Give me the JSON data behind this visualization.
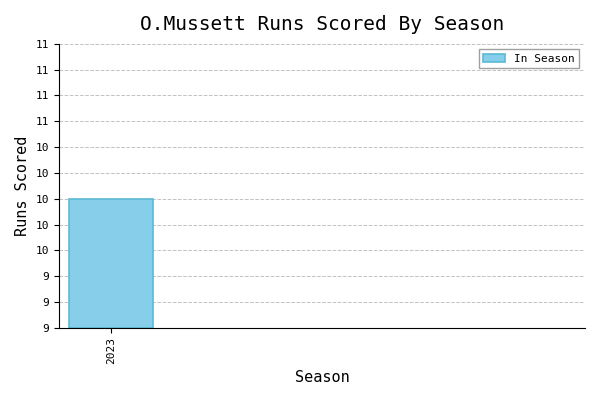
{
  "title": "O.Mussett Runs Scored By Season",
  "xlabel": "Season",
  "ylabel": "Runs Scored",
  "seasons": [
    2023
  ],
  "values": [
    10
  ],
  "bar_color": "#87CEEB",
  "bar_edgecolor": "#5BBAD5",
  "legend_label": "In Season",
  "ylim_min": 9.0,
  "ylim_max": 11.2,
  "xlim_min": 2022.5,
  "xlim_max": 2027.5,
  "ytick_values": [
    9.0,
    9.2,
    9.4,
    9.6,
    9.8,
    10.0,
    10.2,
    10.4,
    10.6,
    10.8,
    11.0,
    11.2
  ],
  "ytick_labels": [
    "9",
    "9",
    "9",
    "10",
    "10",
    "10",
    "10",
    "10",
    "11",
    "11",
    "11",
    "11"
  ],
  "background_color": "#ffffff",
  "grid_color": "#bbbbbb",
  "title_fontsize": 14,
  "label_fontsize": 11,
  "tick_fontsize": 8,
  "font_family": "monospace",
  "bar_width": 0.8
}
